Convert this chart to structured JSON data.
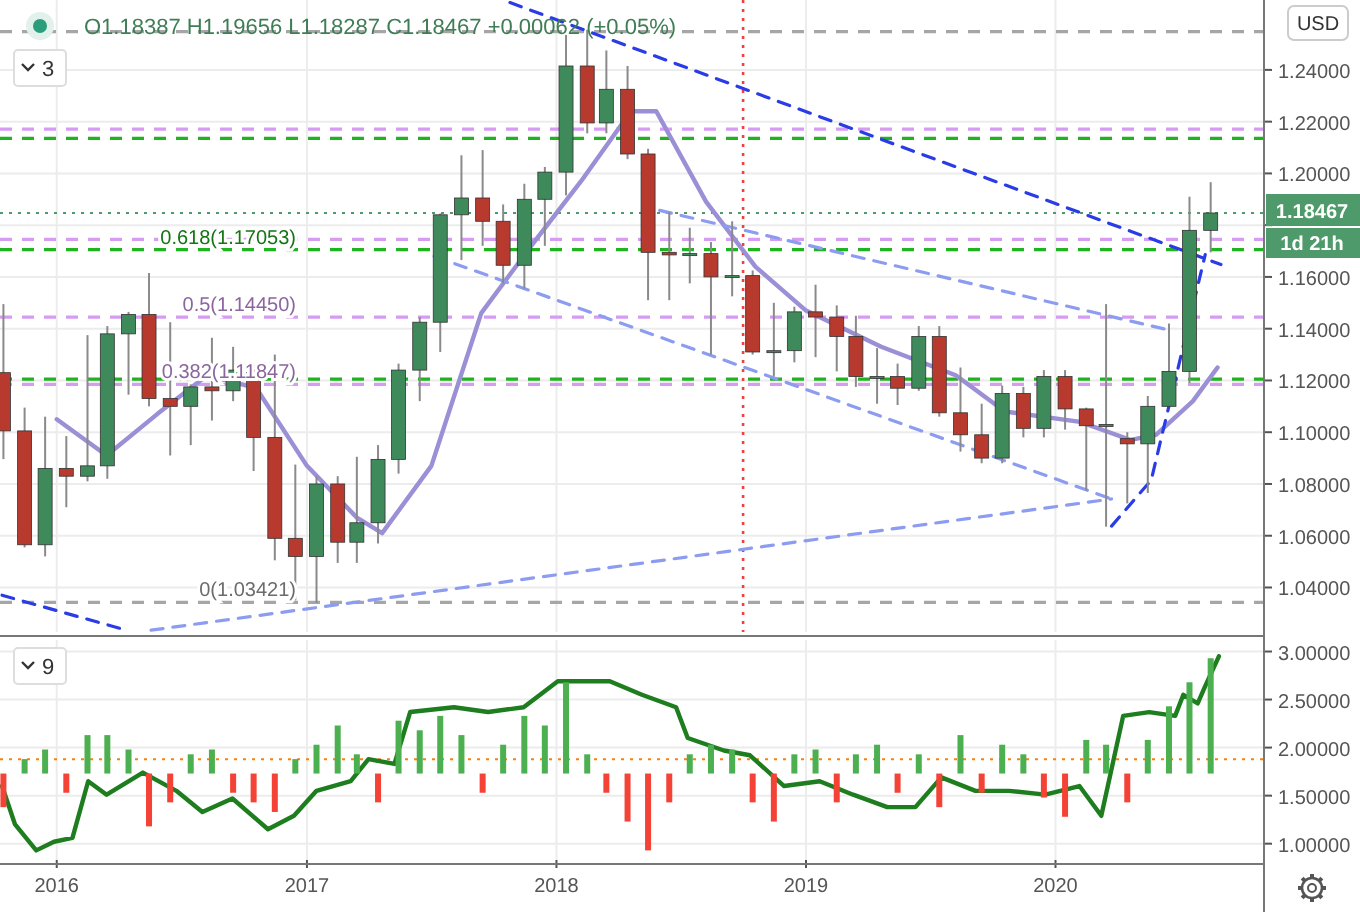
{
  "chart_data": [
    {
      "type": "candlestick",
      "xlim": [
        "2015-10-10",
        "2020-11-01"
      ],
      "ylim": [
        1.0228,
        1.267
      ],
      "xticks": [
        "2016",
        "2017",
        "2018",
        "2019",
        "2020"
      ],
      "yticks": [
        {
          "value": 1.04,
          "label": "1.04000"
        },
        {
          "value": 1.06,
          "label": "1.06000"
        },
        {
          "value": 1.08,
          "label": "1.08000"
        },
        {
          "value": 1.1,
          "label": "1.10000"
        },
        {
          "value": 1.12,
          "label": "1.12000"
        },
        {
          "value": 1.14,
          "label": "1.14000"
        },
        {
          "value": 1.16,
          "label": "1.16000"
        },
        {
          "value": 1.18,
          "label": null
        },
        {
          "value": 1.2,
          "label": "1.20000"
        },
        {
          "value": 1.22,
          "label": "1.22000"
        },
        {
          "value": 1.24,
          "label": "1.24000"
        }
      ],
      "tick_labels": "y",
      "grid": true,
      "x": [
        "2015-10-15",
        "2015-11-15",
        "2015-12-15",
        "2016-01-15",
        "2016-02-15",
        "2016-03-15",
        "2016-04-15",
        "2016-05-15",
        "2016-06-15",
        "2016-07-15",
        "2016-08-15",
        "2016-09-15",
        "2016-10-15",
        "2016-11-15",
        "2016-12-15",
        "2017-01-15",
        "2017-02-15",
        "2017-03-15",
        "2017-04-15",
        "2017-05-15",
        "2017-06-15",
        "2017-07-15",
        "2017-08-15",
        "2017-09-15",
        "2017-10-15",
        "2017-11-15",
        "2017-12-15",
        "2018-01-15",
        "2018-02-15",
        "2018-03-15",
        "2018-04-15",
        "2018-05-15",
        "2018-06-15",
        "2018-07-15",
        "2018-08-15",
        "2018-09-15",
        "2018-10-15",
        "2018-11-15",
        "2018-12-15",
        "2019-01-15",
        "2019-02-15",
        "2019-03-15",
        "2019-04-15",
        "2019-05-15",
        "2019-06-15",
        "2019-07-15",
        "2019-08-15",
        "2019-09-15",
        "2019-10-15",
        "2019-11-15",
        "2019-12-15",
        "2020-01-15",
        "2020-02-15",
        "2020-03-15",
        "2020-04-15",
        "2020-05-15",
        "2020-06-15",
        "2020-07-15",
        "2020-08-15"
      ],
      "ohlc": [
        [
          1.123,
          1.1495,
          1.0896,
          1.1005
        ],
        [
          1.1005,
          1.1095,
          1.0555,
          1.0565
        ],
        [
          1.0565,
          1.106,
          1.052,
          1.086
        ],
        [
          1.086,
          1.0985,
          1.071,
          1.083
        ],
        [
          1.083,
          1.1375,
          1.081,
          1.087
        ],
        [
          1.087,
          1.141,
          1.082,
          1.138
        ],
        [
          1.138,
          1.1465,
          1.1145,
          1.1455
        ],
        [
          1.1455,
          1.1615,
          1.11,
          1.113
        ],
        [
          1.113,
          1.1425,
          1.091,
          1.11
        ],
        [
          1.11,
          1.1185,
          1.095,
          1.1175
        ],
        [
          1.1175,
          1.1365,
          1.1045,
          1.116
        ],
        [
          1.116,
          1.133,
          1.112,
          1.124
        ],
        [
          1.124,
          1.126,
          1.085,
          1.098
        ],
        [
          1.098,
          1.13,
          1.0505,
          1.059
        ],
        [
          1.059,
          1.0875,
          1.035,
          1.052
        ],
        [
          1.052,
          1.083,
          1.034,
          1.08
        ],
        [
          1.08,
          1.083,
          1.0495,
          1.0575
        ],
        [
          1.0575,
          1.0905,
          1.0495,
          1.065
        ],
        [
          1.065,
          1.095,
          1.057,
          1.0895
        ],
        [
          1.0895,
          1.1265,
          1.084,
          1.124
        ],
        [
          1.124,
          1.1445,
          1.112,
          1.1425
        ],
        [
          1.1425,
          1.1845,
          1.131,
          1.184
        ],
        [
          1.184,
          1.207,
          1.1665,
          1.1905
        ],
        [
          1.1905,
          1.209,
          1.172,
          1.1815
        ],
        [
          1.1815,
          1.188,
          1.1575,
          1.1645
        ],
        [
          1.1645,
          1.196,
          1.1555,
          1.19
        ],
        [
          1.19,
          1.2025,
          1.172,
          1.2005
        ],
        [
          1.2005,
          1.2535,
          1.1915,
          1.2415
        ],
        [
          1.2415,
          1.2555,
          1.2155,
          1.2195
        ],
        [
          1.2195,
          1.2475,
          1.2155,
          1.2325
        ],
        [
          1.2325,
          1.2415,
          1.2055,
          1.2075
        ],
        [
          1.2075,
          1.2095,
          1.151,
          1.1695
        ],
        [
          1.1695,
          1.185,
          1.151,
          1.1685
        ],
        [
          1.1685,
          1.179,
          1.1575,
          1.169
        ],
        [
          1.169,
          1.1735,
          1.13,
          1.16
        ],
        [
          1.16,
          1.1815,
          1.1525,
          1.1605
        ],
        [
          1.1605,
          1.1625,
          1.13,
          1.131
        ],
        [
          1.131,
          1.15,
          1.1215,
          1.1315
        ],
        [
          1.1315,
          1.1485,
          1.127,
          1.1465
        ],
        [
          1.1465,
          1.157,
          1.129,
          1.1445
        ],
        [
          1.1445,
          1.149,
          1.1235,
          1.137
        ],
        [
          1.137,
          1.145,
          1.1175,
          1.1215
        ],
        [
          1.1215,
          1.1325,
          1.111,
          1.1215
        ],
        [
          1.1215,
          1.1265,
          1.1105,
          1.117
        ],
        [
          1.117,
          1.141,
          1.116,
          1.137
        ],
        [
          1.137,
          1.141,
          1.106,
          1.1075
        ],
        [
          1.1075,
          1.125,
          1.0925,
          1.099
        ],
        [
          1.099,
          1.111,
          1.088,
          1.09
        ],
        [
          1.09,
          1.118,
          1.088,
          1.115
        ],
        [
          1.115,
          1.1175,
          1.098,
          1.1015
        ],
        [
          1.1015,
          1.124,
          1.098,
          1.1215
        ],
        [
          1.1215,
          1.124,
          1.101,
          1.109
        ],
        [
          1.109,
          1.1095,
          1.0775,
          1.1025
        ],
        [
          1.1025,
          1.1495,
          1.0635,
          1.103
        ],
        [
          1.0975,
          1.1,
          1.0725,
          1.0955
        ],
        [
          1.0955,
          1.114,
          1.0765,
          1.11
        ],
        [
          1.11,
          1.142,
          1.11,
          1.1235
        ],
        [
          1.1235,
          1.191,
          1.119,
          1.178
        ],
        [
          1.178,
          1.1966,
          1.1695,
          1.1847
        ]
      ],
      "series": [
        {
          "type": "line",
          "color": "#9b8fd6",
          "x": [
            "2016-01-01",
            "2016-03-14",
            "2016-05-27",
            "2016-08-08",
            "2016-10-19",
            "2017-01-01",
            "2017-03-15",
            "2017-04-21",
            "2017-07-02",
            "2017-09-13",
            "2017-11-25",
            "2018-02-06",
            "2018-04-20",
            "2018-05-27",
            "2018-08-08",
            "2018-10-19",
            "2019-01-01",
            "2019-04-21",
            "2019-08-08",
            "2019-10-19",
            "2020-02-06",
            "2020-04-20",
            "2020-05-27",
            "2020-07-20",
            "2020-08-25"
          ],
          "values": [
            1.105,
            1.091,
            1.107,
            1.122,
            1.117,
            1.087,
            1.067,
            1.061,
            1.087,
            1.146,
            1.172,
            1.197,
            1.224,
            1.224,
            1.189,
            1.164,
            1.147,
            1.133,
            1.122,
            1.108,
            1.104,
            1.097,
            1.099,
            1.112,
            1.125
          ]
        },
        {
          "type": "line",
          "color": "#2a3ce6",
          "line_style": "dashed",
          "x": [
            "2017-10-25",
            "2020-08-30"
          ],
          "values": [
            1.266,
            1.1648
          ]
        },
        {
          "type": "line",
          "color": "#2a3ce6",
          "line_style": "dashed",
          "x": [
            "2015-10-13",
            "2016-04-12"
          ],
          "values": [
            1.037,
            1.0235
          ]
        },
        {
          "type": "line",
          "color": "#2a3ce6",
          "line_style": "dashed",
          "x": [
            "2020-03-23",
            "2020-05-20",
            "2020-08-07"
          ],
          "values": [
            1.0637,
            1.0815,
            1.1686
          ]
        },
        {
          "type": "line",
          "color": "#8c9cf0",
          "line_style": "dashed",
          "x": [
            "2016-05-18",
            "2020-03-23"
          ],
          "values": [
            1.0235,
            1.0742
          ]
        },
        {
          "type": "line",
          "color": "#8c9cf0",
          "line_style": "dashed",
          "x": [
            "2017-07-06",
            "2020-03-23"
          ],
          "values": [
            1.168,
            1.0742
          ]
        },
        {
          "type": "line",
          "color": "#8c9cf0",
          "line_style": "dashed",
          "x": [
            "2018-06-01",
            "2020-06-16"
          ],
          "values": [
            1.1857,
            1.1394
          ]
        }
      ],
      "ref_lines": [
        {
          "axis": "y",
          "value": 1.25479,
          "color": "#a6a6a6",
          "line_style": "dashed"
        },
        {
          "axis": "y",
          "value": 1.2171,
          "color": "#d69cf2",
          "line_style": "dashed"
        },
        {
          "axis": "y",
          "value": 1.2135,
          "color": "#1fb31f",
          "line_style": "dashed"
        },
        {
          "axis": "y",
          "value": 1.18467,
          "color": "#4f9a6a",
          "line_style": "dotted"
        },
        {
          "axis": "y",
          "value": 1.1745,
          "color": "#d69cf2",
          "line_style": "dashed"
        },
        {
          "axis": "y",
          "value": 1.17053,
          "label": "0.618(1.17053)",
          "color": "#1fb31f",
          "line_style": "dashed"
        },
        {
          "axis": "y",
          "value": 1.1445,
          "label": "0.5(1.14450)",
          "color": "#d69cf2",
          "line_style": "dashed"
        },
        {
          "axis": "y",
          "value": 1.1205,
          "color": "#1fb31f",
          "line_style": "dashed"
        },
        {
          "axis": "y",
          "value": 1.11847,
          "label": "0.382(1.11847)",
          "color": "#d69cf2",
          "line_style": "dashed"
        },
        {
          "axis": "y",
          "value": 1.03421,
          "label": "0(1.03421)",
          "color": "#a6a6a6",
          "line_style": "dashed"
        },
        {
          "axis": "x",
          "value": "2018-10-01",
          "color": "#f04040",
          "line_style": "dotted"
        }
      ],
      "annotations": [
        "O1.18387 H1.19656 L1.18287 C1.18467 +0.00062 (+0.05%)",
        "3",
        "USD",
        "1d 21h",
        "1.18467"
      ]
    },
    {
      "type": "bar",
      "xlim": [
        "2015-10-10",
        "2020-11-01"
      ],
      "ylim": [
        0.83,
        3.12
      ],
      "xticks": [
        "2016",
        "2017",
        "2018",
        "2019",
        "2020"
      ],
      "yticks": [
        {
          "value": 1,
          "label": "1.00000"
        },
        {
          "value": 1.5,
          "label": "1.50000"
        },
        {
          "value": 2,
          "label": "2.00000"
        },
        {
          "value": 2.5,
          "label": "2.50000"
        },
        {
          "value": 3,
          "label": "3.00000"
        }
      ],
      "grid": true,
      "x": [
        "2015-10-15",
        "2015-11-15",
        "2015-12-15",
        "2016-01-15",
        "2016-02-15",
        "2016-03-15",
        "2016-04-15",
        "2016-05-15",
        "2016-06-15",
        "2016-07-15",
        "2016-08-15",
        "2016-09-15",
        "2016-10-15",
        "2016-11-15",
        "2016-12-15",
        "2017-01-15",
        "2017-02-15",
        "2017-03-15",
        "2017-04-15",
        "2017-05-15",
        "2017-06-15",
        "2017-07-15",
        "2017-08-15",
        "2017-09-15",
        "2017-10-15",
        "2017-11-15",
        "2017-12-15",
        "2018-01-15",
        "2018-02-15",
        "2018-03-15",
        "2018-04-15",
        "2018-05-15",
        "2018-06-15",
        "2018-07-15",
        "2018-08-15",
        "2018-09-15",
        "2018-10-15",
        "2018-11-15",
        "2018-12-15",
        "2019-01-15",
        "2019-02-15",
        "2019-03-15",
        "2019-04-15",
        "2019-05-15",
        "2019-06-15",
        "2019-07-15",
        "2019-08-15",
        "2019-09-15",
        "2019-10-15",
        "2019-11-15",
        "2019-12-15",
        "2020-01-15",
        "2020-02-15",
        "2020-03-15",
        "2020-04-15",
        "2020-05-15",
        "2020-06-15",
        "2020-07-15",
        "2020-08-15"
      ],
      "base": [
        1.73,
        1.73,
        1.73,
        1.73,
        1.73,
        1.73,
        1.73,
        1.73,
        1.73,
        1.73,
        1.73,
        1.73,
        1.73,
        1.73,
        1.73,
        1.73,
        1.73,
        1.73,
        1.73,
        1.73,
        1.73,
        1.73,
        1.73,
        1.73,
        1.73,
        1.73,
        1.73,
        1.73,
        1.73,
        1.73,
        1.73,
        1.73,
        1.73,
        1.73,
        1.73,
        1.73,
        1.73,
        1.73,
        1.73,
        1.73,
        1.73,
        1.73,
        1.73,
        1.73,
        1.73,
        1.73,
        1.73,
        1.73,
        1.73,
        1.73,
        1.73,
        1.73,
        1.73,
        1.73,
        1.73,
        1.73,
        1.73,
        1.73,
        1.73
      ],
      "values": [
        -0.35,
        0.15,
        0.25,
        -0.2,
        0.4,
        0.4,
        0.25,
        -0.55,
        -0.3,
        0.2,
        0.25,
        -0.2,
        -0.3,
        -0.4,
        0.15,
        0.3,
        0.5,
        0.2,
        -0.3,
        0.55,
        0.45,
        0.6,
        0.4,
        -0.2,
        0.3,
        0.6,
        0.5,
        0.95,
        0.2,
        -0.2,
        -0.5,
        -0.8,
        -0.3,
        0.2,
        0.3,
        0.25,
        -0.3,
        -0.5,
        0.2,
        0.25,
        -0.3,
        0.2,
        0.3,
        -0.2,
        0.2,
        -0.35,
        0.4,
        -0.2,
        0.3,
        0.2,
        -0.25,
        -0.45,
        0.35,
        0.3,
        -0.3,
        0.35,
        0.7,
        0.95,
        1.2
      ],
      "colors": [
        "#f44336",
        "#4caf50",
        "#4caf50",
        "#f44336",
        "#4caf50",
        "#4caf50",
        "#4caf50",
        "#f44336",
        "#f44336",
        "#4caf50",
        "#4caf50",
        "#f44336",
        "#f44336",
        "#f44336",
        "#4caf50",
        "#4caf50",
        "#4caf50",
        "#4caf50",
        "#f44336",
        "#4caf50",
        "#4caf50",
        "#4caf50",
        "#4caf50",
        "#f44336",
        "#4caf50",
        "#4caf50",
        "#4caf50",
        "#4caf50",
        "#4caf50",
        "#f44336",
        "#f44336",
        "#f44336",
        "#f44336",
        "#4caf50",
        "#4caf50",
        "#4caf50",
        "#f44336",
        "#f44336",
        "#4caf50",
        "#4caf50",
        "#f44336",
        "#4caf50",
        "#4caf50",
        "#f44336",
        "#4caf50",
        "#f44336",
        "#4caf50",
        "#f44336",
        "#4caf50",
        "#4caf50",
        "#f44336",
        "#f44336",
        "#4caf50",
        "#4caf50",
        "#f44336",
        "#4caf50",
        "#4caf50",
        "#4caf50",
        "#4caf50"
      ],
      "series": [
        {
          "type": "line",
          "color": "#1e7d1e",
          "x": [
            "2015-10-13",
            "2015-11-01",
            "2015-12-02",
            "2015-12-28",
            "2016-01-24",
            "2016-02-16",
            "2016-03-14",
            "2016-05-06",
            "2016-06-24",
            "2016-08-01",
            "2016-09-14",
            "2016-11-05",
            "2016-12-13",
            "2017-01-15",
            "2017-03-06",
            "2017-04-01",
            "2017-05-09",
            "2017-06-01",
            "2017-08-04",
            "2017-09-23",
            "2017-11-14",
            "2018-01-03",
            "2018-03-20",
            "2018-05-06",
            "2018-06-25",
            "2018-07-12",
            "2018-09-03",
            "2018-10-11",
            "2018-11-30",
            "2019-01-21",
            "2019-03-11",
            "2019-04-30",
            "2019-06-10",
            "2019-07-18",
            "2019-09-06",
            "2019-10-25",
            "2019-12-17",
            "2020-02-05",
            "2020-03-08",
            "2020-04-09",
            "2020-05-17",
            "2020-06-24",
            "2020-07-06",
            "2020-07-27",
            "2020-08-07",
            "2020-08-27"
          ],
          "values": [
            1.6,
            1.2,
            0.93,
            1.02,
            1.06,
            1.65,
            1.51,
            1.74,
            1.55,
            1.33,
            1.47,
            1.15,
            1.29,
            1.55,
            1.65,
            1.88,
            1.83,
            2.37,
            2.42,
            2.37,
            2.42,
            2.69,
            2.69,
            2.55,
            2.42,
            2.1,
            1.97,
            1.92,
            1.6,
            1.65,
            1.51,
            1.38,
            1.38,
            1.69,
            1.55,
            1.55,
            1.51,
            1.6,
            1.29,
            2.33,
            2.37,
            2.33,
            2.55,
            2.46,
            2.64,
            2.95
          ]
        }
      ],
      "ref_lines": [
        {
          "axis": "y",
          "value": 1.88,
          "color": "#ff7f0e",
          "line_style": "dotted"
        }
      ],
      "annotations": [
        "9"
      ]
    }
  ]
}
